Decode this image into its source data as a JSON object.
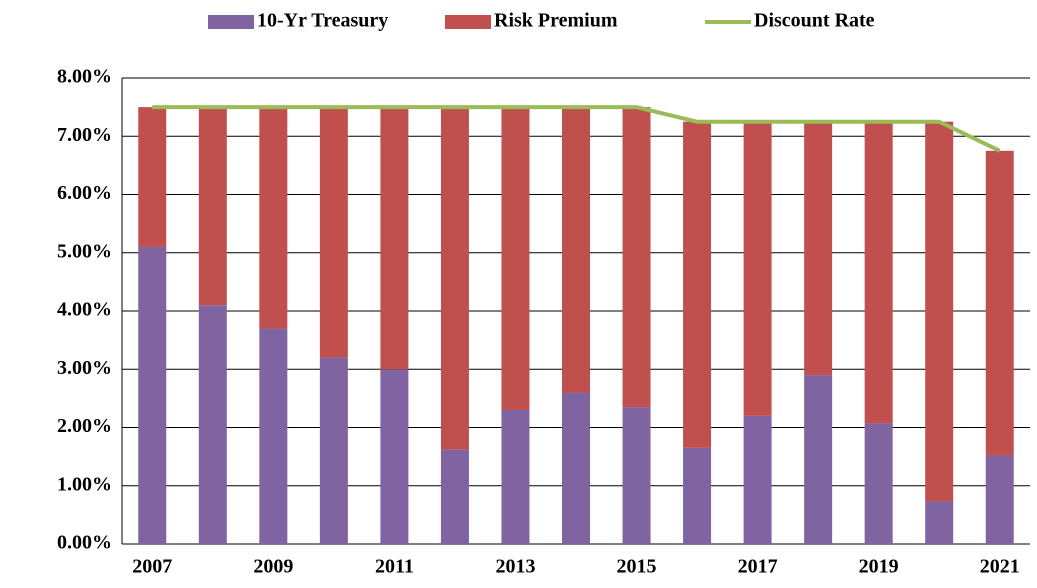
{
  "chart_data": {
    "type": "bar",
    "stacked": true,
    "categories": [
      "2007",
      null,
      "2009",
      null,
      "2011",
      null,
      "2013",
      null,
      "2015",
      null,
      "2017",
      null,
      "2019",
      null,
      "2021"
    ],
    "series": [
      {
        "name": "10-Yr Treasury",
        "color": "#8064a2",
        "values": [
          5.1,
          4.1,
          3.7,
          3.2,
          3.0,
          1.62,
          2.3,
          2.6,
          2.35,
          1.65,
          2.2,
          2.9,
          2.07,
          0.73,
          1.52
        ]
      },
      {
        "name": "Risk Premium",
        "color": "#c0504d",
        "values": [
          2.4,
          3.4,
          3.8,
          4.3,
          4.5,
          5.88,
          5.2,
          4.9,
          5.15,
          5.6,
          5.05,
          4.35,
          5.18,
          6.52,
          5.23
        ]
      },
      {
        "name": "Discount Rate",
        "color": "#9bbb59",
        "type": "line",
        "values": [
          7.5,
          7.5,
          7.5,
          7.5,
          7.5,
          7.5,
          7.5,
          7.5,
          7.5,
          7.25,
          7.25,
          7.25,
          7.25,
          7.25,
          6.75
        ]
      }
    ],
    "ylim": [
      0,
      8
    ],
    "yticks": [
      {
        "value": 0,
        "label": "0.00%"
      },
      {
        "value": 1,
        "label": "1.00%"
      },
      {
        "value": 2,
        "label": "2.00%"
      },
      {
        "value": 3,
        "label": "3.00%"
      },
      {
        "value": 4,
        "label": "4.00%"
      },
      {
        "value": 5,
        "label": "5.00%"
      },
      {
        "value": 6,
        "label": "6.00%"
      },
      {
        "value": 7,
        "label": "7.00%"
      },
      {
        "value": 8,
        "label": "8.00%"
      }
    ],
    "grid": true,
    "legend": "top"
  }
}
